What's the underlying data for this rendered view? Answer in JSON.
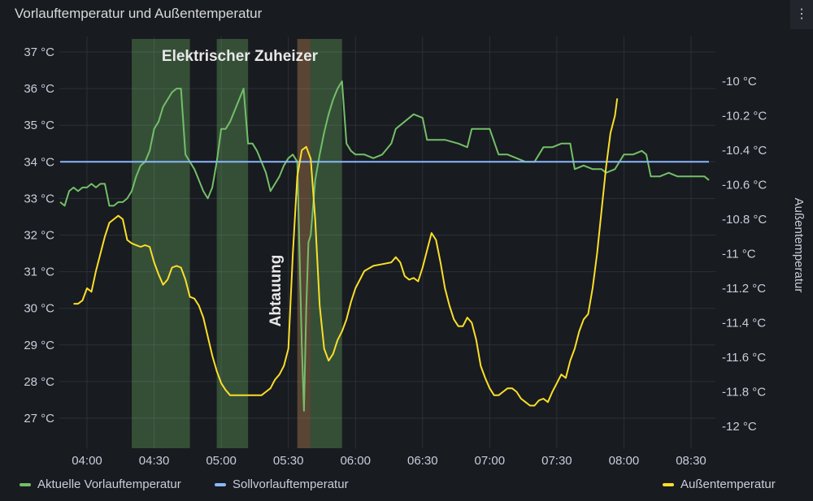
{
  "panel": {
    "title": "Vorlauftemperatur und Außentemperatur",
    "menu_icon": "⋮"
  },
  "chart_data": {
    "type": "line",
    "x_ticks": [
      "04:00",
      "04:30",
      "05:00",
      "05:30",
      "06:00",
      "06:30",
      "07:00",
      "07:30",
      "08:00",
      "08:30"
    ],
    "left_axis": {
      "ticks": [
        "27 °C",
        "28 °C",
        "29 °C",
        "30 °C",
        "31 °C",
        "32 °C",
        "33 °C",
        "34 °C",
        "35 °C",
        "36 °C",
        "37 °C"
      ],
      "ylim": [
        26.5,
        37.2
      ]
    },
    "right_axis": {
      "label": "Außentemperatur",
      "ticks": [
        "-10 °C",
        "-10.2 °C",
        "-10.4 °C",
        "-10.6 °C",
        "-10.8 °C",
        "-11 °C",
        "-11.2 °C",
        "-11.4 °C",
        "-11.6 °C",
        "-11.8 °C",
        "-12 °C"
      ],
      "ylim": [
        -12.1,
        -9.85
      ]
    },
    "annotations": [
      {
        "label": "Elektrischer Zuheizer",
        "color": "#73bf69",
        "ranges": [
          [
            "04:20",
            "04:46"
          ],
          [
            "04:58",
            "05:12"
          ],
          [
            "05:40",
            "05:54"
          ]
        ]
      },
      {
        "label": "Abtauung",
        "color": "#e0a060",
        "ranges": [
          [
            "05:34",
            "05:40"
          ]
        ]
      }
    ],
    "series": [
      {
        "name": "Aktuelle Vorlauftemperatur",
        "axis": "left",
        "color": "#73bf69",
        "points": [
          [
            "03:48",
            32.9
          ],
          [
            "03:50",
            32.8
          ],
          [
            "03:52",
            33.2
          ],
          [
            "03:54",
            33.3
          ],
          [
            "03:56",
            33.2
          ],
          [
            "03:58",
            33.3
          ],
          [
            "04:00",
            33.3
          ],
          [
            "04:02",
            33.4
          ],
          [
            "04:04",
            33.3
          ],
          [
            "04:06",
            33.4
          ],
          [
            "04:08",
            33.4
          ],
          [
            "04:10",
            32.8
          ],
          [
            "04:12",
            32.8
          ],
          [
            "04:14",
            32.9
          ],
          [
            "04:16",
            32.9
          ],
          [
            "04:18",
            33.0
          ],
          [
            "04:20",
            33.2
          ],
          [
            "04:22",
            33.6
          ],
          [
            "04:24",
            33.9
          ],
          [
            "04:26",
            34.0
          ],
          [
            "04:28",
            34.3
          ],
          [
            "04:30",
            34.9
          ],
          [
            "04:32",
            35.1
          ],
          [
            "04:34",
            35.5
          ],
          [
            "04:36",
            35.7
          ],
          [
            "04:38",
            35.9
          ],
          [
            "04:40",
            36.0
          ],
          [
            "04:42",
            36.0
          ],
          [
            "04:44",
            34.2
          ],
          [
            "04:46",
            34.0
          ],
          [
            "04:48",
            33.8
          ],
          [
            "04:50",
            33.5
          ],
          [
            "04:52",
            33.2
          ],
          [
            "04:54",
            33.0
          ],
          [
            "04:56",
            33.3
          ],
          [
            "04:58",
            34.0
          ],
          [
            "05:00",
            34.9
          ],
          [
            "05:02",
            34.9
          ],
          [
            "05:04",
            35.1
          ],
          [
            "05:06",
            35.4
          ],
          [
            "05:08",
            35.7
          ],
          [
            "05:10",
            36.0
          ],
          [
            "05:12",
            34.5
          ],
          [
            "05:14",
            34.5
          ],
          [
            "05:16",
            34.3
          ],
          [
            "05:18",
            34.0
          ],
          [
            "05:20",
            33.7
          ],
          [
            "05:22",
            33.2
          ],
          [
            "05:24",
            33.4
          ],
          [
            "05:26",
            33.6
          ],
          [
            "05:28",
            33.9
          ],
          [
            "05:30",
            34.1
          ],
          [
            "05:32",
            34.2
          ],
          [
            "05:34",
            34.0
          ],
          [
            "05:36",
            29.0
          ],
          [
            "05:37",
            27.2
          ],
          [
            "05:38",
            30.0
          ],
          [
            "05:39",
            31.8
          ],
          [
            "05:40",
            32.0
          ],
          [
            "05:42",
            33.5
          ],
          [
            "05:44",
            34.2
          ],
          [
            "05:46",
            34.8
          ],
          [
            "05:48",
            35.3
          ],
          [
            "05:50",
            35.7
          ],
          [
            "05:52",
            36.0
          ],
          [
            "05:54",
            36.2
          ],
          [
            "05:56",
            34.5
          ],
          [
            "05:58",
            34.3
          ],
          [
            "06:00",
            34.2
          ],
          [
            "06:04",
            34.2
          ],
          [
            "06:08",
            34.1
          ],
          [
            "06:12",
            34.2
          ],
          [
            "06:16",
            34.5
          ],
          [
            "06:18",
            34.9
          ],
          [
            "06:20",
            35.0
          ],
          [
            "06:24",
            35.2
          ],
          [
            "06:26",
            35.3
          ],
          [
            "06:30",
            35.2
          ],
          [
            "06:32",
            34.6
          ],
          [
            "06:36",
            34.6
          ],
          [
            "06:40",
            34.6
          ],
          [
            "06:46",
            34.5
          ],
          [
            "06:50",
            34.4
          ],
          [
            "06:52",
            34.9
          ],
          [
            "06:56",
            34.9
          ],
          [
            "07:00",
            34.9
          ],
          [
            "07:04",
            34.2
          ],
          [
            "07:08",
            34.2
          ],
          [
            "07:12",
            34.1
          ],
          [
            "07:16",
            34.0
          ],
          [
            "07:20",
            34.0
          ],
          [
            "07:24",
            34.4
          ],
          [
            "07:28",
            34.4
          ],
          [
            "07:32",
            34.5
          ],
          [
            "07:36",
            34.5
          ],
          [
            "07:38",
            33.8
          ],
          [
            "07:42",
            33.9
          ],
          [
            "07:46",
            33.8
          ],
          [
            "07:50",
            33.8
          ],
          [
            "07:52",
            33.7
          ],
          [
            "07:56",
            33.8
          ],
          [
            "08:00",
            34.2
          ],
          [
            "08:04",
            34.2
          ],
          [
            "08:08",
            34.3
          ],
          [
            "08:10",
            34.2
          ],
          [
            "08:12",
            33.6
          ],
          [
            "08:16",
            33.6
          ],
          [
            "08:20",
            33.7
          ],
          [
            "08:24",
            33.6
          ],
          [
            "08:28",
            33.6
          ],
          [
            "08:32",
            33.6
          ],
          [
            "08:36",
            33.6
          ],
          [
            "08:38",
            33.5
          ]
        ]
      },
      {
        "name": "Sollvorlauftemperatur",
        "axis": "left",
        "color": "#8ab8ff",
        "points": [
          [
            "03:48",
            34.0
          ],
          [
            "08:38",
            34.0
          ]
        ]
      },
      {
        "name": "Außentemperatur",
        "axis": "right",
        "color": "#fade2a",
        "points": [
          [
            "03:54",
            -11.29
          ],
          [
            "03:56",
            -11.29
          ],
          [
            "03:58",
            -11.27
          ],
          [
            "04:00",
            -11.2
          ],
          [
            "04:02",
            -11.22
          ],
          [
            "04:04",
            -11.1
          ],
          [
            "04:06",
            -11.0
          ],
          [
            "04:08",
            -10.9
          ],
          [
            "04:10",
            -10.82
          ],
          [
            "04:12",
            -10.8
          ],
          [
            "04:14",
            -10.78
          ],
          [
            "04:16",
            -10.8
          ],
          [
            "04:18",
            -10.92
          ],
          [
            "04:20",
            -10.94
          ],
          [
            "04:22",
            -10.95
          ],
          [
            "04:24",
            -10.96
          ],
          [
            "04:26",
            -10.95
          ],
          [
            "04:28",
            -10.96
          ],
          [
            "04:30",
            -11.05
          ],
          [
            "04:32",
            -11.12
          ],
          [
            "04:34",
            -11.18
          ],
          [
            "04:36",
            -11.15
          ],
          [
            "04:38",
            -11.08
          ],
          [
            "04:40",
            -11.07
          ],
          [
            "04:42",
            -11.08
          ],
          [
            "04:44",
            -11.15
          ],
          [
            "04:46",
            -11.25
          ],
          [
            "04:48",
            -11.26
          ],
          [
            "04:50",
            -11.3
          ],
          [
            "04:52",
            -11.37
          ],
          [
            "04:54",
            -11.48
          ],
          [
            "04:56",
            -11.59
          ],
          [
            "04:58",
            -11.68
          ],
          [
            "05:00",
            -11.75
          ],
          [
            "05:02",
            -11.79
          ],
          [
            "05:04",
            -11.82
          ],
          [
            "05:06",
            -11.82
          ],
          [
            "05:08",
            -11.82
          ],
          [
            "05:10",
            -11.82
          ],
          [
            "05:12",
            -11.82
          ],
          [
            "05:14",
            -11.82
          ],
          [
            "05:16",
            -11.82
          ],
          [
            "05:18",
            -11.82
          ],
          [
            "05:20",
            -11.8
          ],
          [
            "05:22",
            -11.78
          ],
          [
            "05:24",
            -11.73
          ],
          [
            "05:26",
            -11.7
          ],
          [
            "05:28",
            -11.65
          ],
          [
            "05:30",
            -11.55
          ],
          [
            "05:32",
            -11.0
          ],
          [
            "05:34",
            -10.55
          ],
          [
            "05:36",
            -10.4
          ],
          [
            "05:38",
            -10.38
          ],
          [
            "05:40",
            -10.45
          ],
          [
            "05:42",
            -10.8
          ],
          [
            "05:44",
            -11.3
          ],
          [
            "05:46",
            -11.55
          ],
          [
            "05:48",
            -11.62
          ],
          [
            "05:50",
            -11.58
          ],
          [
            "05:52",
            -11.5
          ],
          [
            "05:54",
            -11.45
          ],
          [
            "05:56",
            -11.38
          ],
          [
            "05:58",
            -11.28
          ],
          [
            "06:00",
            -11.2
          ],
          [
            "06:04",
            -11.1
          ],
          [
            "06:08",
            -11.07
          ],
          [
            "06:12",
            -11.06
          ],
          [
            "06:16",
            -11.05
          ],
          [
            "06:18",
            -11.02
          ],
          [
            "06:20",
            -11.05
          ],
          [
            "06:22",
            -11.13
          ],
          [
            "06:24",
            -11.15
          ],
          [
            "06:26",
            -11.14
          ],
          [
            "06:28",
            -11.16
          ],
          [
            "06:30",
            -11.08
          ],
          [
            "06:32",
            -10.98
          ],
          [
            "06:34",
            -10.88
          ],
          [
            "06:36",
            -10.92
          ],
          [
            "06:38",
            -11.05
          ],
          [
            "06:40",
            -11.2
          ],
          [
            "06:42",
            -11.3
          ],
          [
            "06:44",
            -11.38
          ],
          [
            "06:46",
            -11.42
          ],
          [
            "06:48",
            -11.42
          ],
          [
            "06:50",
            -11.37
          ],
          [
            "06:52",
            -11.4
          ],
          [
            "06:54",
            -11.5
          ],
          [
            "06:56",
            -11.65
          ],
          [
            "06:58",
            -11.72
          ],
          [
            "07:00",
            -11.78
          ],
          [
            "07:02",
            -11.82
          ],
          [
            "07:04",
            -11.82
          ],
          [
            "07:06",
            -11.8
          ],
          [
            "07:08",
            -11.78
          ],
          [
            "07:10",
            -11.78
          ],
          [
            "07:12",
            -11.8
          ],
          [
            "07:14",
            -11.84
          ],
          [
            "07:16",
            -11.86
          ],
          [
            "07:18",
            -11.88
          ],
          [
            "07:20",
            -11.88
          ],
          [
            "07:22",
            -11.85
          ],
          [
            "07:24",
            -11.84
          ],
          [
            "07:26",
            -11.86
          ],
          [
            "07:28",
            -11.8
          ],
          [
            "07:30",
            -11.75
          ],
          [
            "07:32",
            -11.7
          ],
          [
            "07:34",
            -11.72
          ],
          [
            "07:36",
            -11.62
          ],
          [
            "07:38",
            -11.55
          ],
          [
            "07:40",
            -11.45
          ],
          [
            "07:42",
            -11.38
          ],
          [
            "07:44",
            -11.35
          ],
          [
            "07:46",
            -11.2
          ],
          [
            "07:48",
            -11.0
          ],
          [
            "07:50",
            -10.75
          ],
          [
            "07:52",
            -10.5
          ],
          [
            "07:54",
            -10.3
          ],
          [
            "07:56",
            -10.2
          ],
          [
            "07:57",
            -10.1
          ]
        ]
      }
    ]
  },
  "legend": {
    "items": [
      {
        "label": "Aktuelle Vorlauftemperatur",
        "color": "#73bf69"
      },
      {
        "label": "Sollvorlauftemperatur",
        "color": "#8ab8ff"
      },
      {
        "label": "Außentemperatur",
        "color": "#fade2a"
      }
    ]
  }
}
